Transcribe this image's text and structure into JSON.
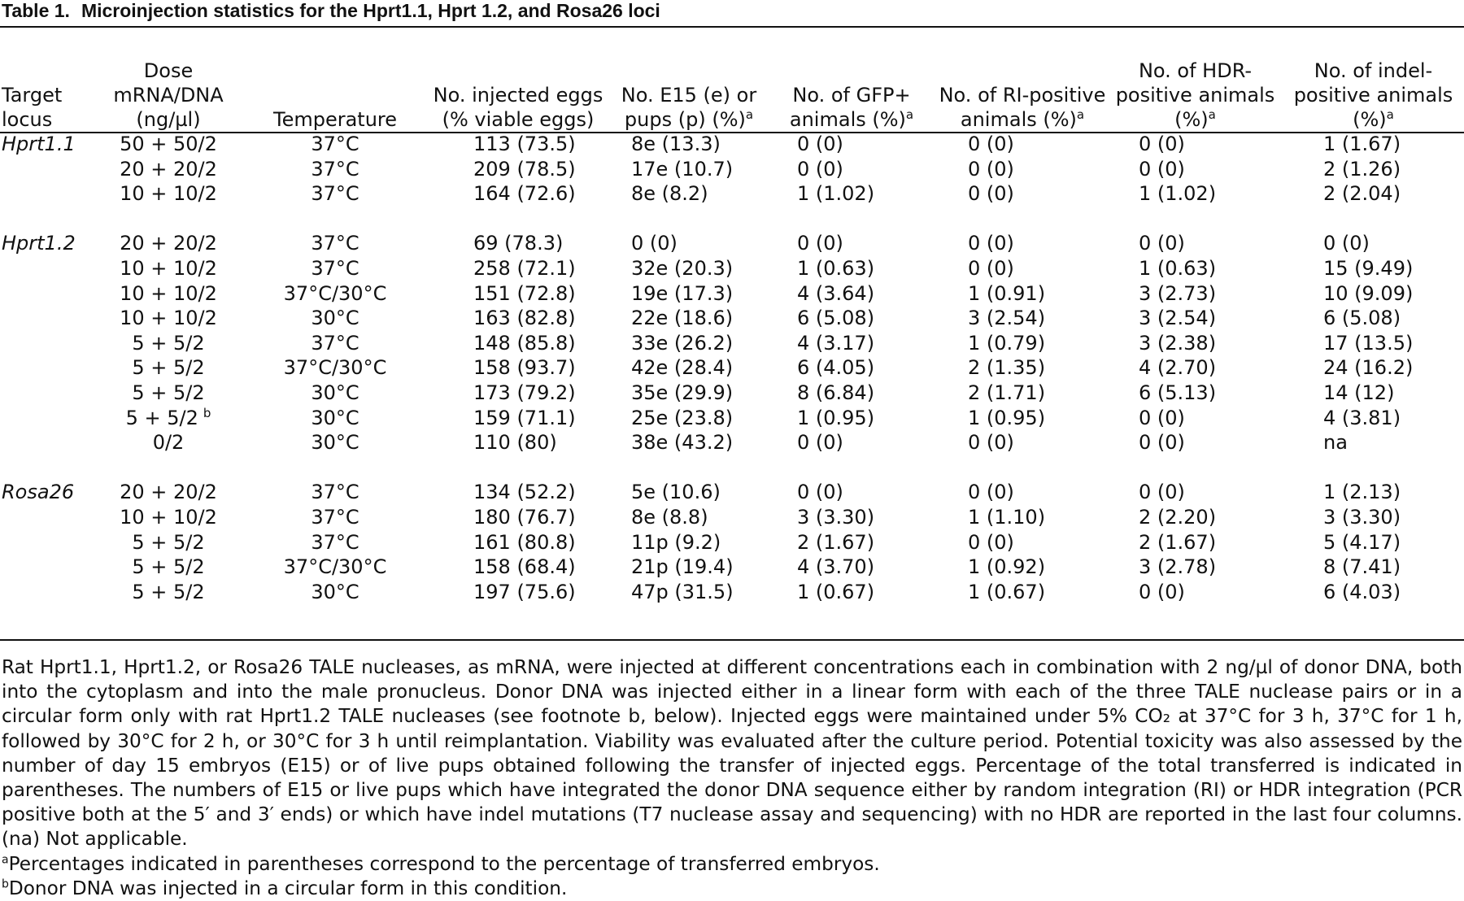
{
  "caption": {
    "label": "Table 1.",
    "text": "Microinjection statistics for the Hprt1.1, Hprt 1.2, and Rosa26 loci"
  },
  "columns": [
    {
      "text": "Target locus",
      "sup": ""
    },
    {
      "text": "Dose mRNA/DNA (ng/µl)",
      "sup": ""
    },
    {
      "text": "Temperature",
      "sup": ""
    },
    {
      "text": "No. injected eggs (% viable eggs)",
      "sup": ""
    },
    {
      "text": "No. E15 (e) or pups (p) (%)",
      "sup": "a"
    },
    {
      "text": "No. of GFP+ animals (%)",
      "sup": "a"
    },
    {
      "text": "No. of RI-positive animals (%)",
      "sup": "a"
    },
    {
      "text": "No. of HDR-positive animals (%)",
      "sup": "a"
    },
    {
      "text": "No. of indel-positive animals (%)",
      "sup": "a"
    }
  ],
  "rows": [
    {
      "locus": "Hprt1.1",
      "dose": "50 + 50/2",
      "temp": "37°C",
      "eggs": "113 (73.5)",
      "e15": "8e (13.3)",
      "gfp": "0 (0)",
      "ri": "0 (0)",
      "hdr": "0 (0)",
      "indel": "1 (1.67)"
    },
    {
      "locus": "",
      "dose": "20 + 20/2",
      "temp": "37°C",
      "eggs": "209 (78.5)",
      "e15": "17e (10.7)",
      "gfp": "0 (0)",
      "ri": "0 (0)",
      "hdr": "0 (0)",
      "indel": "2 (1.26)"
    },
    {
      "locus": "",
      "dose": "10 + 10/2",
      "temp": "37°C",
      "eggs": "164 (72.6)",
      "e15": "8e (8.2)",
      "gfp": "1 (1.02)",
      "ri": "0 (0)",
      "hdr": "1 (1.02)",
      "indel": "2 (2.04)"
    },
    {
      "locus": "Hprt1.2",
      "dose": "20 + 20/2",
      "temp": "37°C",
      "eggs": "69 (78.3)",
      "e15": "0 (0)",
      "gfp": "0 (0)",
      "ri": "0 (0)",
      "hdr": "0 (0)",
      "indel": "0 (0)"
    },
    {
      "locus": "",
      "dose": "10 + 10/2",
      "temp": "37°C",
      "eggs": "258 (72.1)",
      "e15": "32e (20.3)",
      "gfp": "1 (0.63)",
      "ri": "0 (0)",
      "hdr": "1 (0.63)",
      "indel": "15 (9.49)"
    },
    {
      "locus": "",
      "dose": "10 + 10/2",
      "temp": "37°C/30°C",
      "eggs": "151 (72.8)",
      "e15": "19e (17.3)",
      "gfp": "4 (3.64)",
      "ri": "1 (0.91)",
      "hdr": "3 (2.73)",
      "indel": "10 (9.09)"
    },
    {
      "locus": "",
      "dose": "10 + 10/2",
      "temp": "30°C",
      "eggs": "163 (82.8)",
      "e15": "22e (18.6)",
      "gfp": "6 (5.08)",
      "ri": "3 (2.54)",
      "hdr": "3 (2.54)",
      "indel": "6 (5.08)"
    },
    {
      "locus": "",
      "dose": "5 + 5/2",
      "temp": "37°C",
      "eggs": "148 (85.8)",
      "e15": "33e (26.2)",
      "gfp": "4 (3.17)",
      "ri": "1 (0.79)",
      "hdr": "3 (2.38)",
      "indel": "17 (13.5)"
    },
    {
      "locus": "",
      "dose": "5 + 5/2",
      "temp": "37°C/30°C",
      "eggs": "158 (93.7)",
      "e15": "42e (28.4)",
      "gfp": "6 (4.05)",
      "ri": "2 (1.35)",
      "hdr": "4 (2.70)",
      "indel": "24 (16.2)"
    },
    {
      "locus": "",
      "dose": "5 + 5/2",
      "temp": "30°C",
      "eggs": "173 (79.2)",
      "e15": "35e (29.9)",
      "gfp": "8 (6.84)",
      "ri": "2 (1.71)",
      "hdr": "6 (5.13)",
      "indel": "14 (12)"
    },
    {
      "locus": "",
      "dose": "5 + 5/2",
      "dose_sup": "b",
      "temp": "30°C",
      "eggs": "159 (71.1)",
      "e15": "25e (23.8)",
      "gfp": "1 (0.95)",
      "ri": "1 (0.95)",
      "hdr": "0 (0)",
      "indel": "4 (3.81)"
    },
    {
      "locus": "",
      "dose": "0/2",
      "temp": "30°C",
      "eggs": "110 (80)",
      "e15": "38e (43.2)",
      "gfp": "0 (0)",
      "ri": "0 (0)",
      "hdr": "0 (0)",
      "indel": "na"
    },
    {
      "locus": "Rosa26",
      "dose": "20 + 20/2",
      "temp": "37°C",
      "eggs": "134 (52.2)",
      "e15": "5e (10.6)",
      "gfp": "0 (0)",
      "ri": "0 (0)",
      "hdr": "0 (0)",
      "indel": "1 (2.13)"
    },
    {
      "locus": "",
      "dose": "10 + 10/2",
      "temp": "37°C",
      "eggs": "180 (76.7)",
      "e15": "8e (8.8)",
      "gfp": "3 (3.30)",
      "ri": "1 (1.10)",
      "hdr": "2 (2.20)",
      "indel": "3 (3.30)"
    },
    {
      "locus": "",
      "dose": "5 + 5/2",
      "temp": "37°C",
      "eggs": "161 (80.8)",
      "e15": "11p (9.2)",
      "gfp": "2 (1.67)",
      "ri": "0 (0)",
      "hdr": "2 (1.67)",
      "indel": "5 (4.17)"
    },
    {
      "locus": "",
      "dose": "5 + 5/2",
      "temp": "37°C/30°C",
      "eggs": "158 (68.4)",
      "e15": "21p (19.4)",
      "gfp": "4 (3.70)",
      "ri": "1 (0.92)",
      "hdr": "3 (2.78)",
      "indel": "8 (7.41)"
    },
    {
      "locus": "",
      "dose": "5 + 5/2",
      "temp": "30°C",
      "eggs": "197 (75.6)",
      "e15": "47p (31.5)",
      "gfp": "1 (0.67)",
      "ri": "1 (0.67)",
      "hdr": "0 (0)",
      "indel": "6 (4.03)"
    }
  ],
  "notes": {
    "paragraph": "Rat Hprt1.1, Hprt1.2, or Rosa26 TALE nucleases, as mRNA, were injected at different concentrations each in combination with 2 ng/µl of donor DNA, both into the cytoplasm and into the male pronucleus. Donor DNA was injected either in a linear form with each of the three TALE nuclease pairs or in a circular form only with rat Hprt1.2 TALE nucleases (see footnote b, below). Injected eggs were maintained under 5% CO₂ at 37°C for 3 h, 37°C for 1 h, followed by 30°C for 2 h, or 30°C for 3 h until reimplantation. Viability was evaluated after the culture period. Potential toxicity was also assessed by the number of day 15 embryos (E15) or of live pups obtained following the transfer of injected eggs. Percentage of the total transferred is indicated in parentheses. The numbers of E15 or live pups which have integrated the donor DNA sequence either by random integration (RI) or HDR integration (PCR positive both at the 5′ and 3′ ends) or which have indel mutations (T7 nuclease assay and sequencing) with no HDR are reported in the last four columns. (na) Not applicable.",
    "footnote_a_mark": "a",
    "footnote_a": "Percentages indicated in parentheses correspond to the percentage of transferred embryos.",
    "footnote_b_mark": "b",
    "footnote_b": "Donor DNA was injected in a circular form in this condition."
  }
}
